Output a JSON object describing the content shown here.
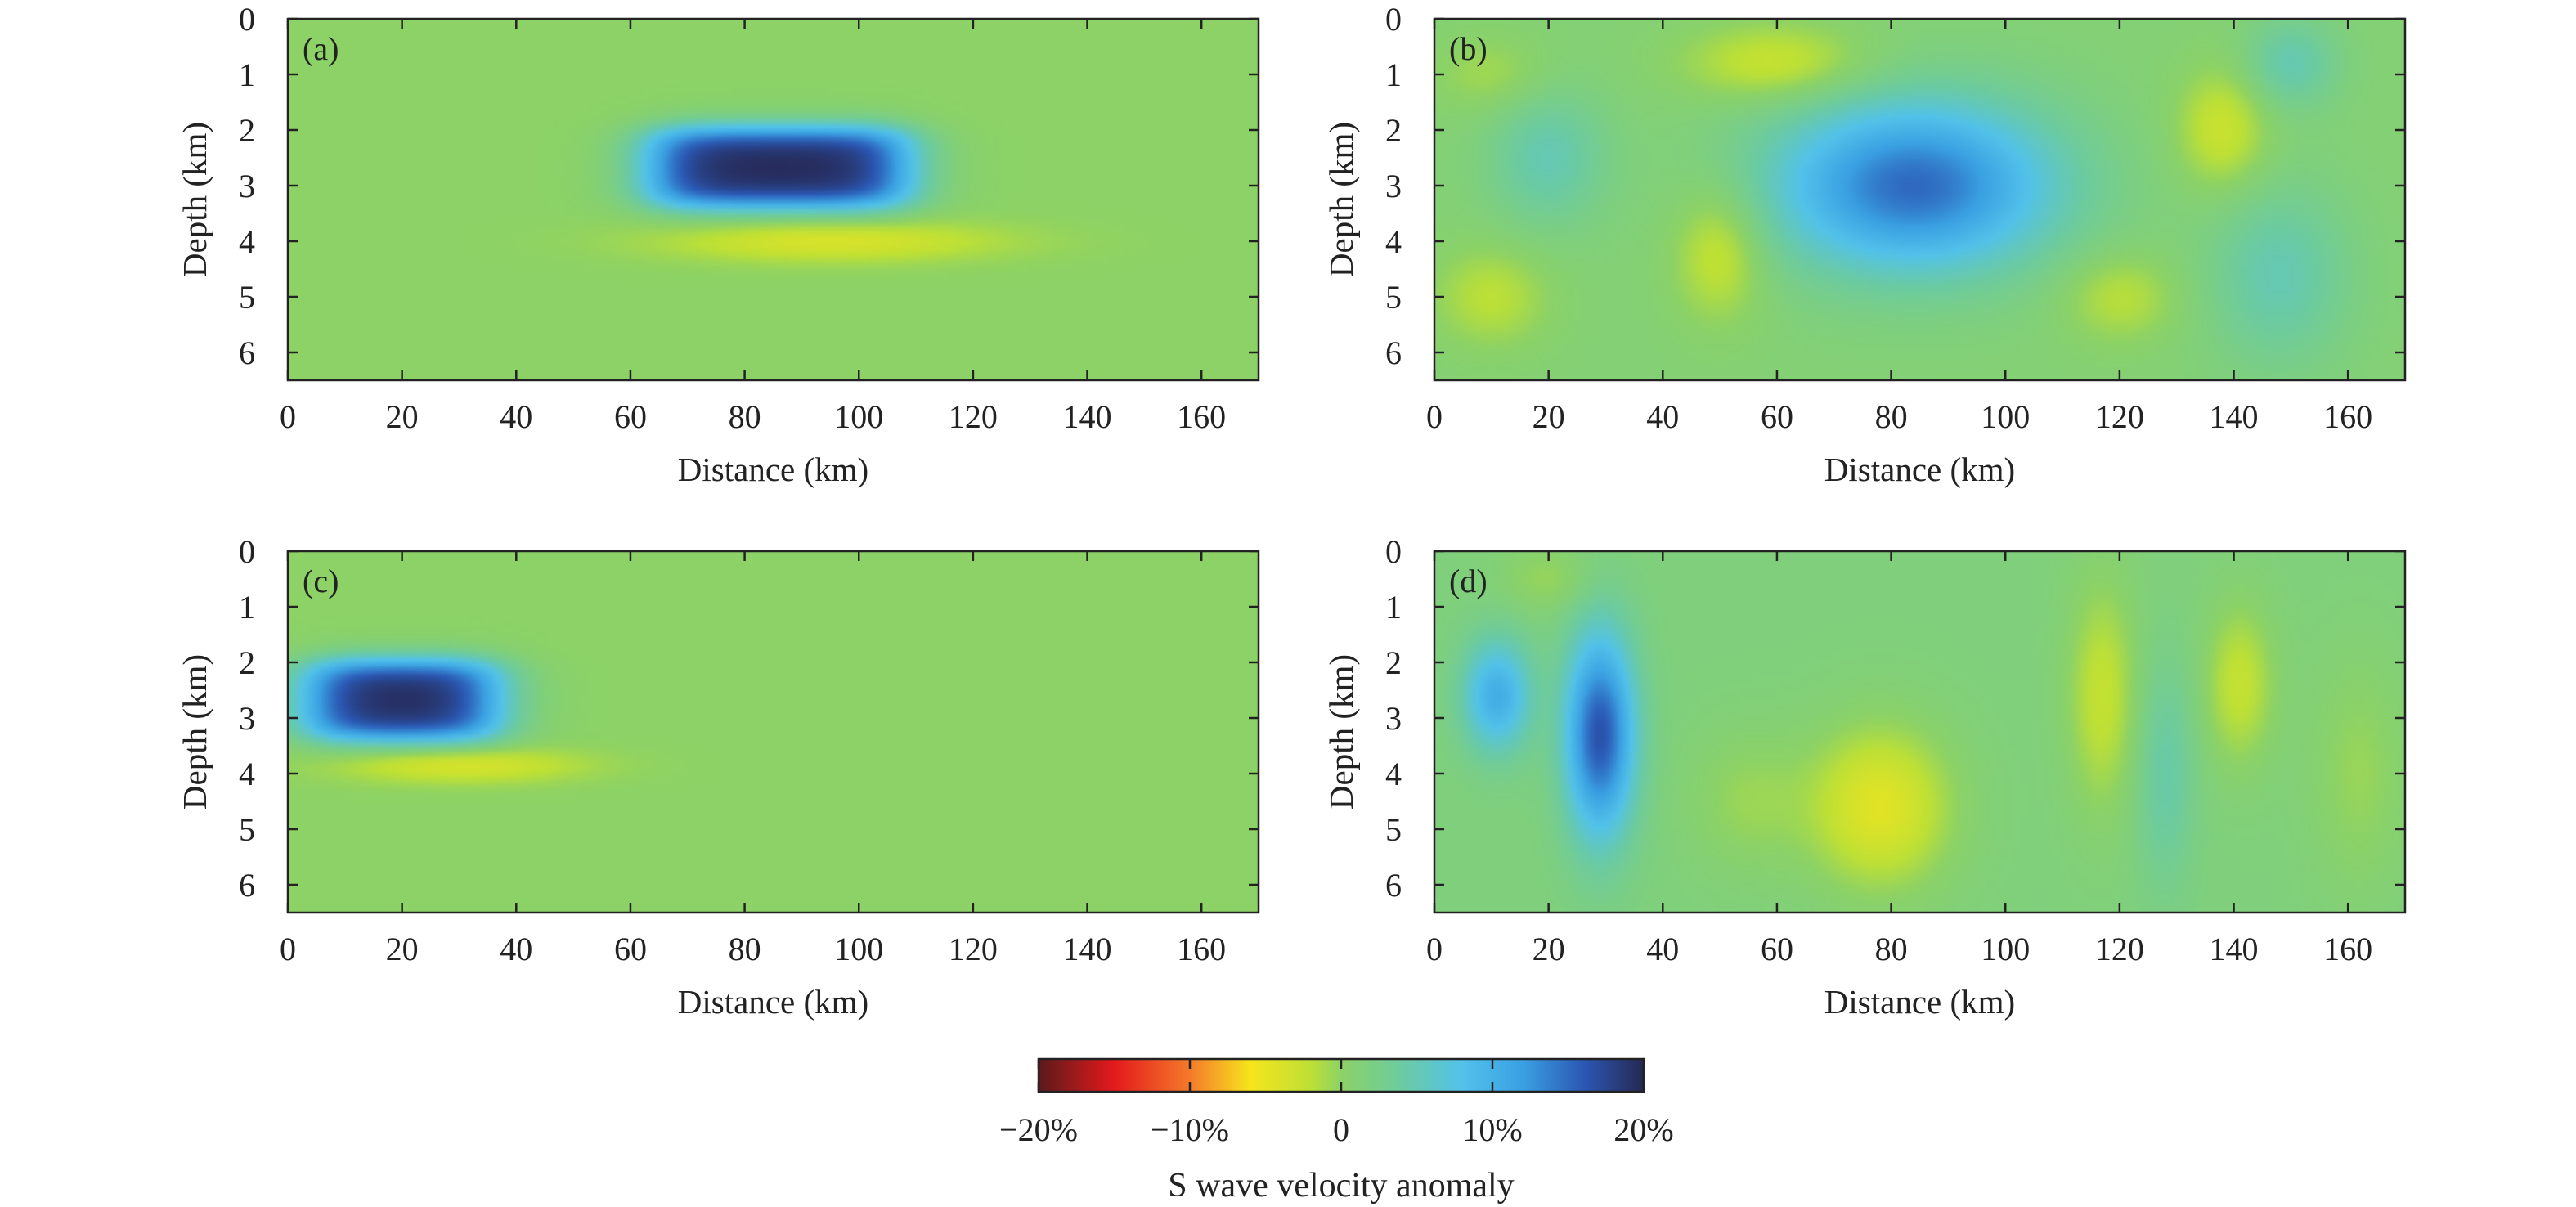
{
  "chart_data": [
    {
      "type": "heatmap",
      "panel_label": "(a)",
      "xlabel": "Distance (km)",
      "ylabel": "Depth (km)",
      "xlim": [
        0,
        170
      ],
      "ylim": [
        0,
        6.5
      ],
      "x_ticks": [
        0,
        20,
        40,
        60,
        80,
        100,
        120,
        140,
        160
      ],
      "y_ticks": [
        0,
        1,
        2,
        3,
        4,
        5,
        6
      ],
      "y_inverted": true,
      "background_value": 0,
      "features": [
        {
          "shape": "box",
          "x_range": [
            64,
            108
          ],
          "z_range": [
            2.0,
            3.35
          ],
          "value": 20
        },
        {
          "shape": "blob",
          "x_center": 95,
          "z_center": 4.0,
          "x_radius": 28,
          "z_radius": 0.35,
          "value": -4
        }
      ]
    },
    {
      "type": "heatmap",
      "panel_label": "(b)",
      "xlabel": "Distance (km)",
      "ylabel": "Depth (km)",
      "xlim": [
        0,
        170
      ],
      "ylim": [
        0,
        6.5
      ],
      "x_ticks": [
        0,
        20,
        40,
        60,
        80,
        100,
        120,
        140,
        160
      ],
      "y_ticks": [
        0,
        1,
        2,
        3,
        4,
        5,
        6
      ],
      "y_inverted": true,
      "background_value": 1,
      "features": [
        {
          "shape": "blob",
          "x_center": 84,
          "z_center": 3.0,
          "x_radius": 24,
          "z_radius": 1.5,
          "value": 14
        },
        {
          "shape": "blob",
          "x_center": 20,
          "z_center": 2.5,
          "x_radius": 10,
          "z_radius": 1.2,
          "value": 4
        },
        {
          "shape": "blob",
          "x_center": 148,
          "z_center": 4.6,
          "x_radius": 12,
          "z_radius": 1.6,
          "value": 4
        },
        {
          "shape": "blob",
          "x_center": 150,
          "z_center": 0.8,
          "x_radius": 8,
          "z_radius": 0.8,
          "value": 4
        },
        {
          "shape": "blob",
          "x_center": 60,
          "z_center": 0.8,
          "x_radius": 16,
          "z_radius": 0.7,
          "value": -4
        },
        {
          "shape": "blob",
          "x_center": 50,
          "z_center": 4.2,
          "x_radius": 8,
          "z_radius": 1.2,
          "value": -4
        },
        {
          "shape": "blob",
          "x_center": 10,
          "z_center": 5.0,
          "x_radius": 10,
          "z_radius": 0.9,
          "value": -3
        },
        {
          "shape": "blob",
          "x_center": 120,
          "z_center": 5.0,
          "x_radius": 10,
          "z_radius": 0.8,
          "value": -3
        },
        {
          "shape": "blob",
          "x_center": 138,
          "z_center": 2.0,
          "x_radius": 8,
          "z_radius": 1.1,
          "value": -4
        },
        {
          "shape": "blob",
          "x_center": 10,
          "z_center": 1.0,
          "x_radius": 10,
          "z_radius": 0.7,
          "value": -2
        }
      ]
    },
    {
      "type": "heatmap",
      "panel_label": "(c)",
      "xlabel": "Distance (km)",
      "ylabel": "Depth (km)",
      "xlim": [
        0,
        170
      ],
      "ylim": [
        0,
        6.5
      ],
      "x_ticks": [
        0,
        20,
        40,
        60,
        80,
        100,
        120,
        140,
        160
      ],
      "y_ticks": [
        0,
        1,
        2,
        3,
        4,
        5,
        6
      ],
      "y_inverted": true,
      "background_value": 0,
      "features": [
        {
          "shape": "box",
          "x_range": [
            4,
            36
          ],
          "z_range": [
            2.0,
            3.35
          ],
          "value": 20
        },
        {
          "shape": "blob",
          "x_center": 30,
          "z_center": 3.85,
          "x_radius": 20,
          "z_radius": 0.3,
          "value": -4
        }
      ]
    },
    {
      "type": "heatmap",
      "panel_label": "(d)",
      "xlabel": "Distance (km)",
      "ylabel": "Depth (km)",
      "xlim": [
        0,
        170
      ],
      "ylim": [
        0,
        6.5
      ],
      "x_ticks": [
        0,
        20,
        40,
        60,
        80,
        100,
        120,
        140,
        160
      ],
      "y_ticks": [
        0,
        1,
        2,
        3,
        4,
        5,
        6
      ],
      "y_inverted": true,
      "background_value": 1.5,
      "features": [
        {
          "shape": "blob",
          "x_center": 29,
          "z_center": 3.3,
          "x_radius": 6,
          "z_radius": 1.8,
          "value": 15
        },
        {
          "shape": "blob",
          "x_center": 11,
          "z_center": 2.6,
          "x_radius": 6,
          "z_radius": 1.0,
          "value": 9
        },
        {
          "shape": "blob",
          "x_center": 78,
          "z_center": 4.6,
          "x_radius": 12,
          "z_radius": 1.4,
          "value": -6
        },
        {
          "shape": "blob",
          "x_center": 117,
          "z_center": 2.6,
          "x_radius": 6,
          "z_radius": 2.0,
          "value": -4
        },
        {
          "shape": "blob",
          "x_center": 141,
          "z_center": 2.4,
          "x_radius": 6,
          "z_radius": 1.4,
          "value": -4
        },
        {
          "shape": "blob",
          "x_center": 55,
          "z_center": 4.5,
          "x_radius": 10,
          "z_radius": 1.2,
          "value": -2
        },
        {
          "shape": "blob",
          "x_center": 128,
          "z_center": 4.0,
          "x_radius": 5,
          "z_radius": 2.0,
          "value": 3
        },
        {
          "shape": "blob",
          "x_center": 20,
          "z_center": 0.5,
          "x_radius": 8,
          "z_radius": 0.6,
          "value": -2
        },
        {
          "shape": "blob",
          "x_center": 162,
          "z_center": 4.0,
          "x_radius": 8,
          "z_radius": 2.0,
          "value": -2
        }
      ]
    }
  ],
  "colorbar": {
    "title": "S wave velocity anomaly",
    "range": [
      -20,
      20
    ],
    "ticks": [
      -20,
      -10,
      0,
      10,
      20
    ],
    "tick_labels": [
      "−20%",
      "−10%",
      "0",
      "10%",
      "20%"
    ],
    "colors": [
      {
        "value": -20,
        "color": "#5a1a1c"
      },
      {
        "value": -15,
        "color": "#e31a1c"
      },
      {
        "value": -10,
        "color": "#f47a2a"
      },
      {
        "value": -6,
        "color": "#f6e51c"
      },
      {
        "value": -2,
        "color": "#bde036"
      },
      {
        "value": 0,
        "color": "#8cd266"
      },
      {
        "value": 4,
        "color": "#6ccba0"
      },
      {
        "value": 8,
        "color": "#52c2ea"
      },
      {
        "value": 12,
        "color": "#3aa0e2"
      },
      {
        "value": 16,
        "color": "#2b58b4"
      },
      {
        "value": 20,
        "color": "#262854"
      }
    ]
  }
}
